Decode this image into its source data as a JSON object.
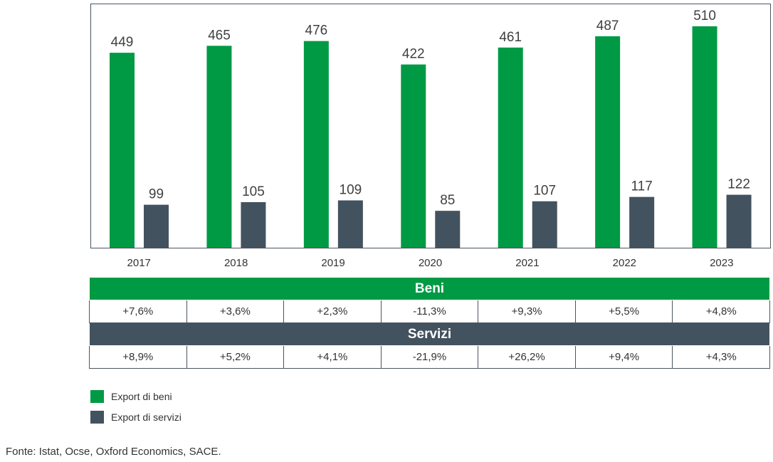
{
  "colors": {
    "beni": "#009a44",
    "servizi": "#43525f"
  },
  "chart_data": {
    "type": "bar",
    "categories": [
      "2017",
      "2018",
      "2019",
      "2020",
      "2021",
      "2022",
      "2023"
    ],
    "series": [
      {
        "name": "Export di beni",
        "values": [
          449,
          465,
          476,
          422,
          461,
          487,
          510
        ]
      },
      {
        "name": "Export di servizi",
        "values": [
          99,
          105,
          109,
          85,
          107,
          117,
          122
        ]
      }
    ],
    "title": "",
    "xlabel": "",
    "ylabel": "",
    "ylim": [
      0,
      570
    ],
    "grid": false,
    "legend": "bottom-left",
    "data_labels": true
  },
  "table": {
    "beni": {
      "title": "Beni",
      "values": [
        "+7,6%",
        "+3,6%",
        "+2,3%",
        "-11,3%",
        "+9,3%",
        "+5,5%",
        "+4,8%"
      ]
    },
    "servizi": {
      "title": "Servizi",
      "values": [
        "+8,9%",
        "+5,2%",
        "+4,1%",
        "-21,9%",
        "+26,2%",
        "+9,4%",
        "+4,3%"
      ]
    }
  },
  "legend": {
    "items": [
      "Export di beni",
      "Export di servizi"
    ]
  },
  "source": "Fonte: Istat, Ocse, Oxford Economics, SACE."
}
